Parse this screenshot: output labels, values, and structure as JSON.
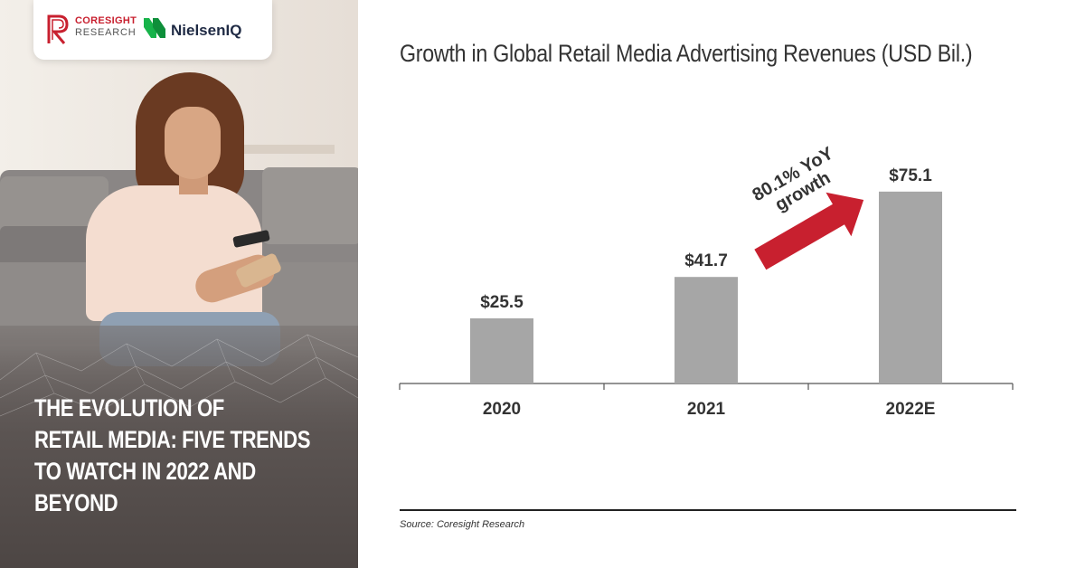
{
  "logos": {
    "coresight_name": "CORESIGHT",
    "coresight_sub": "RESEARCH",
    "nielsen": "NielsenIQ"
  },
  "headline": {
    "lines": [
      "THE EVOLUTION OF",
      "RETAIL MEDIA: FIVE TRENDS",
      "TO WATCH IN 2022 AND",
      "BEYOND"
    ]
  },
  "chart_data": {
    "type": "bar",
    "title": "Growth in Global Retail Media Advertising Revenues (USD Bil.)",
    "categories": [
      "2020",
      "2021",
      "2022E"
    ],
    "values": [
      25.5,
      41.7,
      75.1
    ],
    "value_labels": [
      "$25.5",
      "$41.7",
      "$75.1"
    ],
    "xlabel": "",
    "ylabel": "",
    "ylim": [
      0,
      80
    ],
    "grid": false,
    "legend": "none",
    "bar_color": "#a6a6a6",
    "annotation": {
      "lines": [
        "80.1% YoY",
        "growth"
      ],
      "arrow_color": "#c8202f"
    }
  },
  "source": "Source: Coresight Research",
  "colors": {
    "brand_red": "#c8202f",
    "text_dark": "#333333"
  }
}
